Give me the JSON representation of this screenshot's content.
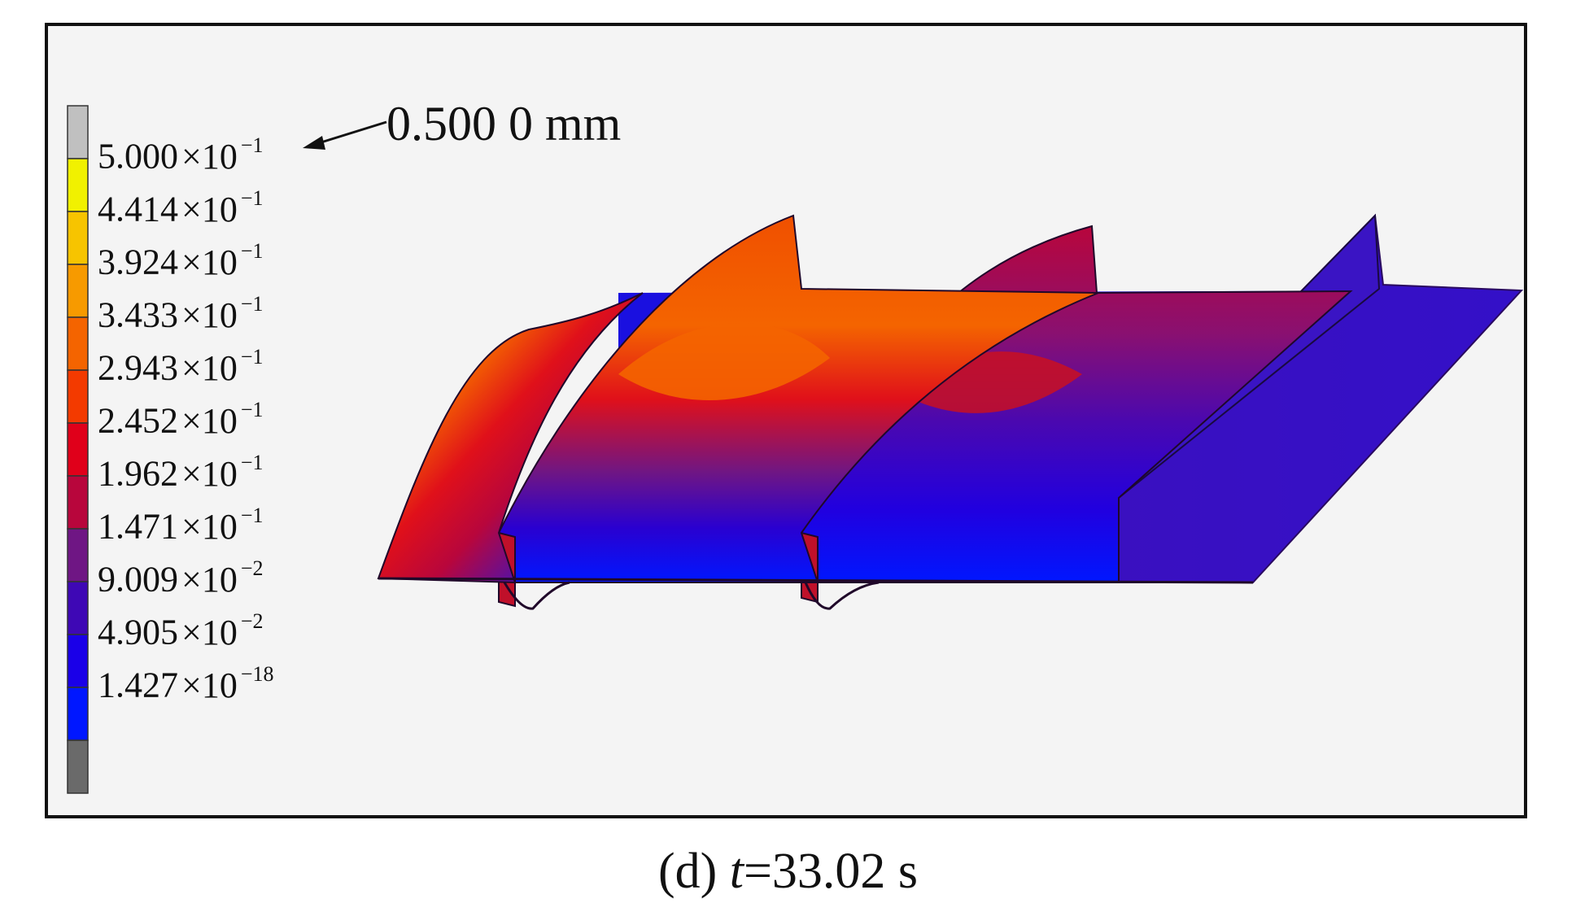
{
  "legend": {
    "top_swatch": "#c0c0c0",
    "bottom_swatch": "#6a6a6a",
    "levels": [
      {
        "mantissa": "5.000",
        "exp": "−1",
        "color": "#f1f100"
      },
      {
        "mantissa": "4.414",
        "exp": "−1",
        "color": "#f7c400"
      },
      {
        "mantissa": "3.924",
        "exp": "−1",
        "color": "#f79a00"
      },
      {
        "mantissa": "3.433",
        "exp": "−1",
        "color": "#f46400"
      },
      {
        "mantissa": "2.943",
        "exp": "−1",
        "color": "#f33a00"
      },
      {
        "mantissa": "2.452",
        "exp": "−1",
        "color": "#e0001a"
      },
      {
        "mantissa": "1.962",
        "exp": "−1",
        "color": "#b8063c"
      },
      {
        "mantissa": "1.471",
        "exp": "−1",
        "color": "#6f1684"
      },
      {
        "mantissa": "9.009",
        "exp": "−2",
        "color": "#3e08b5"
      },
      {
        "mantissa": "4.905",
        "exp": "−2",
        "color": "#1a00e8"
      },
      {
        "mantissa": "1.427",
        "exp": "−18",
        "color": "#0017ff"
      }
    ]
  },
  "annotation": "0.500 0 mm",
  "caption": {
    "panel": "(d)",
    "var": "t",
    "rest": "=33.02 s"
  }
}
